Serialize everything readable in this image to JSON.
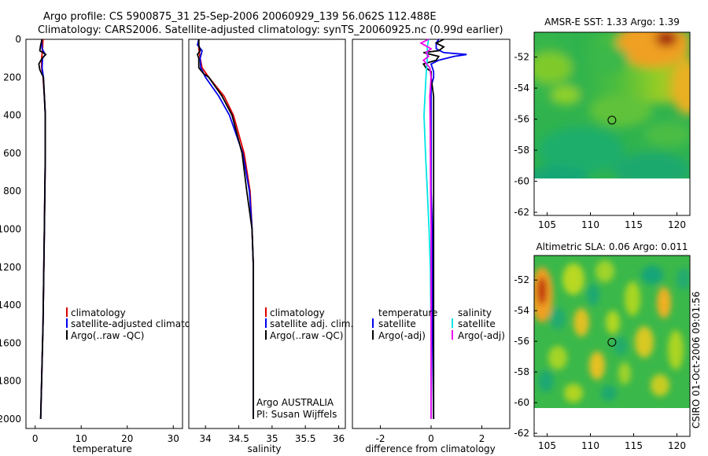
{
  "header": {
    "line1": "Argo profile: CS 5900875_31 25-Sep-2006 20060929_139 56.062S 112.488E",
    "line2": "Climatology: CARS2006. Satellite-adjusted climatology: synTS_20060925.nc (0.99d earlier)"
  },
  "credit": "CSIRO 01-Oct-2006 09:01:56",
  "colors": {
    "climatology": "#dd0000",
    "satellite": "#0000ee",
    "argo": "#000000",
    "salinity_satellite": "#00e5e5",
    "salinity_argo": "#ee00ee"
  },
  "chart_data": [
    {
      "type": "line",
      "xlabel": "temperature",
      "ylabel": "",
      "xlim": [
        -2,
        32
      ],
      "ylim": [
        2050,
        0
      ],
      "xticks": [
        "0",
        "10",
        "20",
        "30"
      ],
      "yticks": [
        "0",
        "200",
        "400",
        "600",
        "800",
        "1000",
        "1200",
        "1400",
        "1600",
        "1800",
        "2000"
      ],
      "legend": [
        "climatology",
        "satellite-adjusted climatology",
        "Argo(..raw -QC)"
      ],
      "series": [
        {
          "name": "climatology",
          "depth": [
            0,
            50,
            100,
            150,
            200,
            300,
            400,
            600,
            800,
            1000,
            1500,
            2000
          ],
          "values": [
            1.7,
            1.6,
            1.4,
            1.4,
            1.7,
            2.0,
            2.2,
            2.2,
            2.1,
            2.0,
            1.7,
            1.2
          ]
        },
        {
          "name": "satellite-adjusted climatology",
          "depth": [
            0,
            50,
            80,
            100,
            150,
            200,
            300,
            400,
            600,
            800,
            1000,
            1500,
            2000
          ],
          "values": [
            1.4,
            1.5,
            2.2,
            1.6,
            1.5,
            1.8,
            2.0,
            2.2,
            2.2,
            2.1,
            2.0,
            1.7,
            1.2
          ]
        },
        {
          "name": "Argo(..raw -QC)",
          "depth": [
            0,
            30,
            60,
            80,
            100,
            130,
            160,
            200,
            300,
            400,
            600,
            800,
            1000,
            1500,
            2000
          ],
          "values": [
            1.5,
            1.2,
            1.0,
            2.3,
            1.5,
            0.8,
            1.0,
            1.8,
            2.0,
            2.2,
            2.2,
            2.1,
            2.0,
            1.7,
            1.2
          ]
        }
      ]
    },
    {
      "type": "line",
      "xlabel": "salinity",
      "ylabel": "",
      "xlim": [
        33.75,
        36.1
      ],
      "ylim": [
        2050,
        0
      ],
      "xticks": [
        "34",
        "34.5",
        "35",
        "35.5",
        "36"
      ],
      "legend": [
        "climatology",
        "satellite adj. clim.",
        "Argo(..raw -QC)"
      ],
      "annotation": [
        "Argo AUSTRALIA",
        "PI: Susan Wijffels"
      ],
      "series": [
        {
          "name": "climatology",
          "depth": [
            0,
            50,
            100,
            150,
            200,
            300,
            400,
            600,
            800,
            1000,
            1200,
            1500,
            2000
          ],
          "values": [
            33.9,
            33.9,
            33.92,
            33.95,
            34.05,
            34.28,
            34.42,
            34.58,
            34.67,
            34.7,
            34.72,
            34.72,
            34.72
          ]
        },
        {
          "name": "satellite adj. clim.",
          "depth": [
            0,
            30,
            60,
            100,
            150,
            200,
            300,
            400,
            600,
            800,
            1000,
            1200,
            1500,
            2000
          ],
          "values": [
            33.9,
            33.88,
            33.95,
            33.92,
            33.93,
            34.0,
            34.2,
            34.36,
            34.56,
            34.66,
            34.7,
            34.72,
            34.72,
            34.72
          ]
        },
        {
          "name": "Argo(..raw -QC)",
          "depth": [
            0,
            30,
            60,
            80,
            100,
            150,
            180,
            200,
            300,
            400,
            600,
            800,
            1000,
            1200,
            1500,
            2000
          ],
          "values": [
            33.9,
            33.9,
            33.92,
            33.88,
            33.9,
            33.9,
            33.97,
            34.05,
            34.25,
            34.4,
            34.55,
            34.62,
            34.7,
            34.72,
            34.72,
            34.72
          ]
        }
      ]
    },
    {
      "type": "line",
      "xlabel": "difference from climatology",
      "ylabel": "",
      "xlim": [
        -3.1,
        3.1
      ],
      "ylim": [
        2050,
        0
      ],
      "xticks": [
        "-2",
        "0",
        "2"
      ],
      "legend_groups": [
        {
          "heading": "temperature",
          "items": [
            "satellite",
            "Argo(-adj)"
          ]
        },
        {
          "heading": "salinity",
          "items": [
            "satellite",
            "Argo(-adj)"
          ]
        }
      ],
      "series": [
        {
          "name": "temperature satellite",
          "depth": [
            0,
            20,
            50,
            70,
            80,
            90,
            110,
            130,
            170,
            200,
            250,
            400,
            600,
            800,
            1000,
            1500,
            2000
          ],
          "values": [
            0.3,
            0.2,
            0.2,
            0.5,
            1.4,
            0.9,
            0.3,
            0.0,
            0.1,
            0.1,
            0.0,
            0.0,
            0.0,
            0.0,
            0.05,
            0.05,
            0.1
          ]
        },
        {
          "name": "temperature Argo(-adj)",
          "depth": [
            0,
            20,
            40,
            60,
            70,
            90,
            110,
            130,
            150,
            170,
            200,
            300,
            500,
            800,
            1000,
            1500,
            2000
          ],
          "values": [
            0.5,
            0.2,
            0.5,
            0.3,
            -0.3,
            0.3,
            0.2,
            -0.3,
            -0.2,
            0.0,
            0.0,
            0.1,
            0.1,
            0.1,
            0.1,
            0.1,
            0.1
          ]
        },
        {
          "name": "salinity satellite",
          "depth": [
            0,
            40,
            100,
            200,
            400,
            600,
            800,
            1000,
            1200,
            1500,
            2000
          ],
          "values": [
            -0.1,
            -0.15,
            -0.15,
            -0.2,
            -0.28,
            -0.22,
            -0.15,
            -0.08,
            -0.03,
            0.0,
            0.0
          ]
        },
        {
          "name": "salinity Argo(-adj)",
          "depth": [
            0,
            20,
            50,
            70,
            90,
            110,
            150,
            200,
            300,
            500,
            800,
            1000,
            1500,
            2000
          ],
          "values": [
            -0.1,
            -0.4,
            0.0,
            -0.2,
            -0.1,
            -0.3,
            -0.05,
            0.0,
            -0.05,
            -0.03,
            -0.02,
            0.0,
            0.0,
            0.0
          ]
        }
      ]
    },
    {
      "type": "heatmap",
      "title": "AMSR-E SST: 1.33 Argo: 1.39",
      "xlim": [
        103.5,
        121.5
      ],
      "ylim": [
        -62.2,
        -50.4
      ],
      "xticks": [
        "105",
        "110",
        "115",
        "120"
      ],
      "yticks": [
        "-52",
        "-54",
        "-56",
        "-58",
        "-60",
        "-62"
      ],
      "marker": {
        "lon": 112.488,
        "lat": -56.062
      }
    },
    {
      "type": "heatmap",
      "title": "Altimetric SLA: 0.06 Argo: 0.011",
      "xlim": [
        103.5,
        121.5
      ],
      "ylim": [
        -62.2,
        -50.4
      ],
      "xticks": [
        "105",
        "110",
        "115",
        "120"
      ],
      "yticks": [
        "-52",
        "-54",
        "-56",
        "-58",
        "-60",
        "-62"
      ],
      "marker": {
        "lon": 112.488,
        "lat": -56.062
      }
    }
  ]
}
